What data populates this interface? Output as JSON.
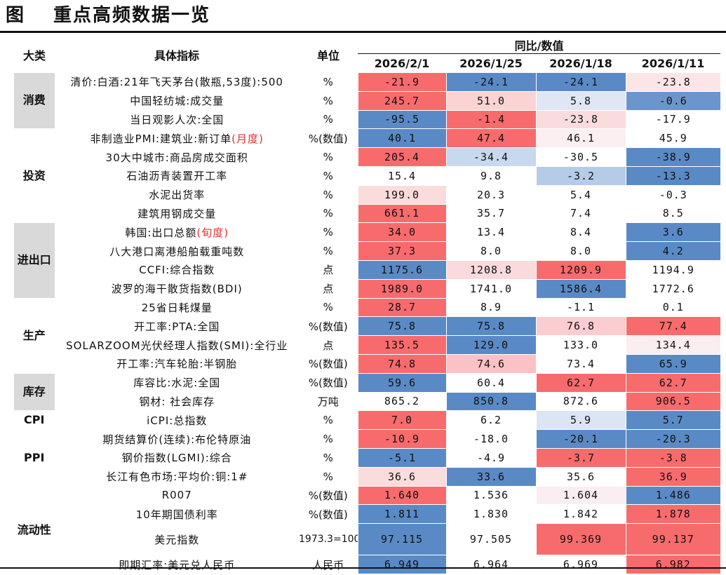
{
  "title": {
    "label": "图",
    "text": "重点高频数据一览"
  },
  "header": {
    "category": "大类",
    "indicator": "具体指标",
    "unit": "单位",
    "group": "同比/数值",
    "dates": [
      "2026/2/1",
      "2026/1/25",
      "2026/1/18",
      "2026/1/11"
    ]
  },
  "colors": {
    "red_strong": "#f8696b",
    "blue_strong": "#5a8ac6",
    "neutral": "#ffffff",
    "category_bg": "#d9d9d9",
    "highlight_text": "#e03030"
  },
  "categories": [
    {
      "name": "消费",
      "rows": 3,
      "shaded": true
    },
    {
      "name": "投资",
      "rows": 5,
      "shaded": false
    },
    {
      "name": "进出口",
      "rows": 4,
      "shaded": true
    },
    {
      "name": "生产",
      "rows": 4,
      "shaded": false
    },
    {
      "name": "库存",
      "rows": 2,
      "shaded": true
    },
    {
      "name": "CPI",
      "rows": 1,
      "shaded": false
    },
    {
      "name": "PPI",
      "rows": 3,
      "shaded": false
    },
    {
      "name": "流动性",
      "rows": 4,
      "shaded": false
    }
  ],
  "rows": [
    {
      "name": "清价:白酒:21年飞天茅台(散瓶,53度):500",
      "note": "",
      "unit": "%",
      "values": [
        "-21.9",
        "-24.1",
        "-24.1",
        "-23.8"
      ]
    },
    {
      "name": "中国轻纺城:成交量",
      "note": "",
      "unit": "%",
      "values": [
        "245.7",
        "51.0",
        "5.8",
        "-0.6"
      ]
    },
    {
      "name": "当日观影人次:全国",
      "note": "",
      "unit": "%",
      "values": [
        "-95.5",
        "-1.4",
        "-23.8",
        "-17.9"
      ]
    },
    {
      "name": "非制造业PMI:建筑业:新订单",
      "note": "(月度)",
      "unit": "%(数值)",
      "values": [
        "40.1",
        "47.4",
        "46.1",
        "45.9"
      ]
    },
    {
      "name": "30大中城市:商品房成交面积",
      "note": "",
      "unit": "%",
      "values": [
        "205.4",
        "-34.4",
        "-30.5",
        "-38.9"
      ]
    },
    {
      "name": "石油沥青装置开工率",
      "note": "",
      "unit": "%",
      "values": [
        "15.4",
        "9.8",
        "-3.2",
        "-13.3"
      ]
    },
    {
      "name": "水泥出货率",
      "note": "",
      "unit": "%",
      "values": [
        "199.0",
        "20.3",
        "5.4",
        "-0.3"
      ]
    },
    {
      "name": "建筑用钢成交量",
      "note": "",
      "unit": "%",
      "values": [
        "661.1",
        "35.7",
        "7.4",
        "8.5"
      ]
    },
    {
      "name": "韩国:出口总额",
      "note": "(旬度)",
      "unit": "%",
      "values": [
        "34.0",
        "13.4",
        "8.4",
        "3.6"
      ]
    },
    {
      "name": "八大港口离港船舶载重吨数",
      "note": "",
      "unit": "%",
      "values": [
        "37.3",
        "8.0",
        "8.0",
        "4.2"
      ]
    },
    {
      "name": "CCFI:综合指数",
      "note": "",
      "unit": "点",
      "values": [
        "1175.6",
        "1208.8",
        "1209.9",
        "1194.9"
      ]
    },
    {
      "name": "波罗的海干散货指数(BDI)",
      "note": "",
      "unit": "点",
      "values": [
        "1989.0",
        "1741.0",
        "1586.4",
        "1772.6"
      ]
    },
    {
      "name": "25省日耗煤量",
      "note": "",
      "unit": "%",
      "values": [
        "28.7",
        "8.9",
        "-1.1",
        "0.1"
      ]
    },
    {
      "name": "开工率:PTA:全国",
      "note": "",
      "unit": "%(数值)",
      "values": [
        "75.8",
        "75.8",
        "76.8",
        "77.4"
      ]
    },
    {
      "name": "SOLARZOOM光伏经理人指数(SMI):全行业",
      "note": "",
      "unit": "点",
      "values": [
        "135.5",
        "129.0",
        "133.0",
        "134.4"
      ]
    },
    {
      "name": "开工率:汽车轮胎:半钢胎",
      "note": "",
      "unit": "%(数值)",
      "values": [
        "74.8",
        "74.6",
        "73.4",
        "65.9"
      ]
    },
    {
      "name": "库容比:水泥:全国",
      "note": "",
      "unit": "%(数值)",
      "values": [
        "59.6",
        "60.4",
        "62.7",
        "62.7"
      ]
    },
    {
      "name": "钢材: 社会库存",
      "note": "",
      "unit": "万吨",
      "values": [
        "865.2",
        "850.8",
        "872.6",
        "906.5"
      ]
    },
    {
      "name": "iCPI:总指数",
      "note": "",
      "unit": "%",
      "values": [
        "7.0",
        "6.2",
        "5.9",
        "5.7"
      ]
    },
    {
      "name": "期货结算价(连续):布伦特原油",
      "note": "",
      "unit": "%",
      "values": [
        "-10.9",
        "-18.0",
        "-20.1",
        "-20.3"
      ]
    },
    {
      "name": "钢价指数(LGMI):综合",
      "note": "",
      "unit": "%",
      "values": [
        "-5.1",
        "-4.9",
        "-3.7",
        "-3.8"
      ]
    },
    {
      "name": "长江有色市场:平均价:铜:1#",
      "note": "",
      "unit": "%",
      "values": [
        "36.6",
        "33.6",
        "35.6",
        "36.9"
      ]
    },
    {
      "name": "R007",
      "note": "",
      "unit": "%(数值)",
      "values": [
        "1.640",
        "1.536",
        "1.604",
        "1.486"
      ]
    },
    {
      "name": "10年期国债利率",
      "note": "",
      "unit": "%(数值)",
      "values": [
        "1.811",
        "1.830",
        "1.842",
        "1.878"
      ]
    },
    {
      "name": "美元指数",
      "note": "",
      "unit": "1973.3=100",
      "values": [
        "97.115",
        "97.505",
        "99.369",
        "99.137"
      ]
    },
    {
      "name": "即期汇率:美元兑人民币",
      "note": "",
      "unit": "人民币",
      "values": [
        "6.949",
        "6.964",
        "6.969",
        "6.982"
      ]
    }
  ],
  "cell_colors": [
    [
      "#f86b6d",
      "#5a8ac6",
      "#5a8ac6",
      "#fbe5e7"
    ],
    [
      "#f86b6d",
      "#fbd3d5",
      "#dfe7f4",
      "#6c96cb"
    ],
    [
      "#5a8ac6",
      "#f86b6d",
      "#fbdcdd",
      "#ffffff"
    ],
    [
      "#5a8ac6",
      "#f86b6d",
      "#fbeff1",
      "#ffffff"
    ],
    [
      "#f86b6d",
      "#c8d8ee",
      "#ffffff",
      "#5a8ac6"
    ],
    [
      "#ffffff",
      "#ffffff",
      "#b5cbe8",
      "#5a8ac6"
    ],
    [
      "#fbdcdd",
      "#ffffff",
      "#ffffff",
      "#ffffff"
    ],
    [
      "#f86b6d",
      "#ffffff",
      "#ffffff",
      "#ffffff"
    ],
    [
      "#f86b6d",
      "#ffffff",
      "#ffffff",
      "#5a8ac6"
    ],
    [
      "#f86b6d",
      "#ffffff",
      "#ffffff",
      "#5a8ac6"
    ],
    [
      "#5a8ac6",
      "#fbdadd",
      "#f86b6d",
      "#ffffff"
    ],
    [
      "#f86b6d",
      "#ffffff",
      "#5a8ac6",
      "#ffffff"
    ],
    [
      "#f86b6d",
      "#ffffff",
      "#ffffff",
      "#ffffff"
    ],
    [
      "#5a8ac6",
      "#5a8ac6",
      "#fbcdd0",
      "#f86b6d"
    ],
    [
      "#f86b6d",
      "#5a8ac6",
      "#ffffff",
      "#fbeef0"
    ],
    [
      "#f86b6d",
      "#fac2c5",
      "#ffffff",
      "#5a8ac6"
    ],
    [
      "#5a8ac6",
      "#ffffff",
      "#f86b6d",
      "#f86b6d"
    ],
    [
      "#ffffff",
      "#5a8ac6",
      "#ffffff",
      "#f86b6d"
    ],
    [
      "#f86b6d",
      "#ffffff",
      "#dbe5f3",
      "#5a8ac6"
    ],
    [
      "#f86b6d",
      "#ffffff",
      "#5a8ac6",
      "#5a8ac6"
    ],
    [
      "#5a8ac6",
      "#ffffff",
      "#f86b6d",
      "#f86b6d"
    ],
    [
      "#fbdcdd",
      "#5a8ac6",
      "#ffffff",
      "#f86b6d"
    ],
    [
      "#f86b6d",
      "#ffffff",
      "#fbeef0",
      "#5a8ac6"
    ],
    [
      "#5a8ac6",
      "#ffffff",
      "#ffffff",
      "#f86b6d"
    ],
    [
      "#5a8ac6",
      "#ffffff",
      "#f86b6d",
      "#f86b6d"
    ],
    [
      "#5a8ac6",
      "#ffffff",
      "#ffffff",
      "#f86b6d"
    ]
  ]
}
